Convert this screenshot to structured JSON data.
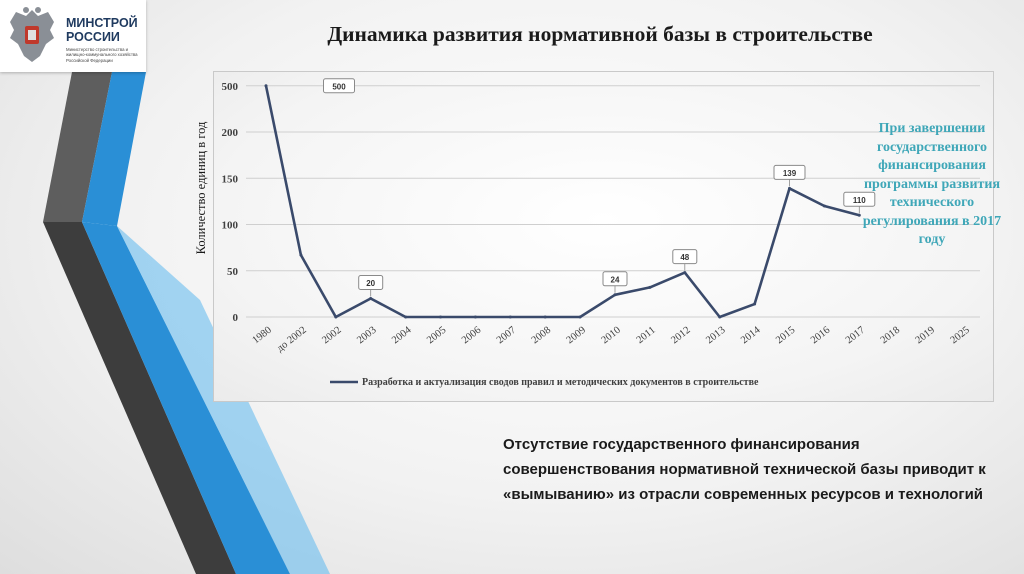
{
  "logo": {
    "name_line1": "МИНСТРОЙ",
    "name_line2": "РОССИИ",
    "subtitle": "Министерство строительства и жилищно-коммунального хозяйства Российской Федерации",
    "emblem_icon": "coat-of-arms-icon"
  },
  "slide_title": "Динамика развития нормативной базы в строительстве",
  "callout_text": "При завершении государственного финансирования программы развития технического регулирования в 2017 году",
  "bottom_text": "Отсутствие государственного финансирования совершенствования нормативной технической базы приводит к «вымыванию» из отрасли современных ресурсов и технологий",
  "colors": {
    "line": "#3a4a6b",
    "callout": "#3fa7b8",
    "accent_blue": "#2a8fd6",
    "accent_dark": "#5a5a5a"
  },
  "chart_data": {
    "type": "line",
    "ylabel": "Количество единиц в год",
    "xlabel": "",
    "y_ticks": [
      0,
      50,
      100,
      150,
      200,
      500
    ],
    "categories": [
      "1980",
      "до 2002",
      "2002",
      "2003",
      "2004",
      "2005",
      "2006",
      "2007",
      "2008",
      "2009",
      "2010",
      "2011",
      "2012",
      "2013",
      "2014",
      "2015",
      "2016",
      "2017",
      "2018",
      "2019",
      "2025"
    ],
    "series": [
      {
        "name": "Разработка и актуализация сводов правил и методических документов в строительстве",
        "values": [
          500,
          67,
          0,
          20,
          0,
          0,
          0,
          0,
          0,
          0,
          24,
          32,
          48,
          0,
          14,
          139,
          120,
          110,
          null,
          null,
          null
        ]
      }
    ],
    "data_labels": [
      {
        "category": "1980",
        "text": "500"
      },
      {
        "category": "2003",
        "text": "20"
      },
      {
        "category": "2010",
        "text": "24"
      },
      {
        "category": "2012",
        "text": "48"
      },
      {
        "category": "2015",
        "text": "139"
      },
      {
        "category": "2017",
        "text": "110"
      }
    ],
    "grid": true,
    "legend_position": "bottom"
  }
}
